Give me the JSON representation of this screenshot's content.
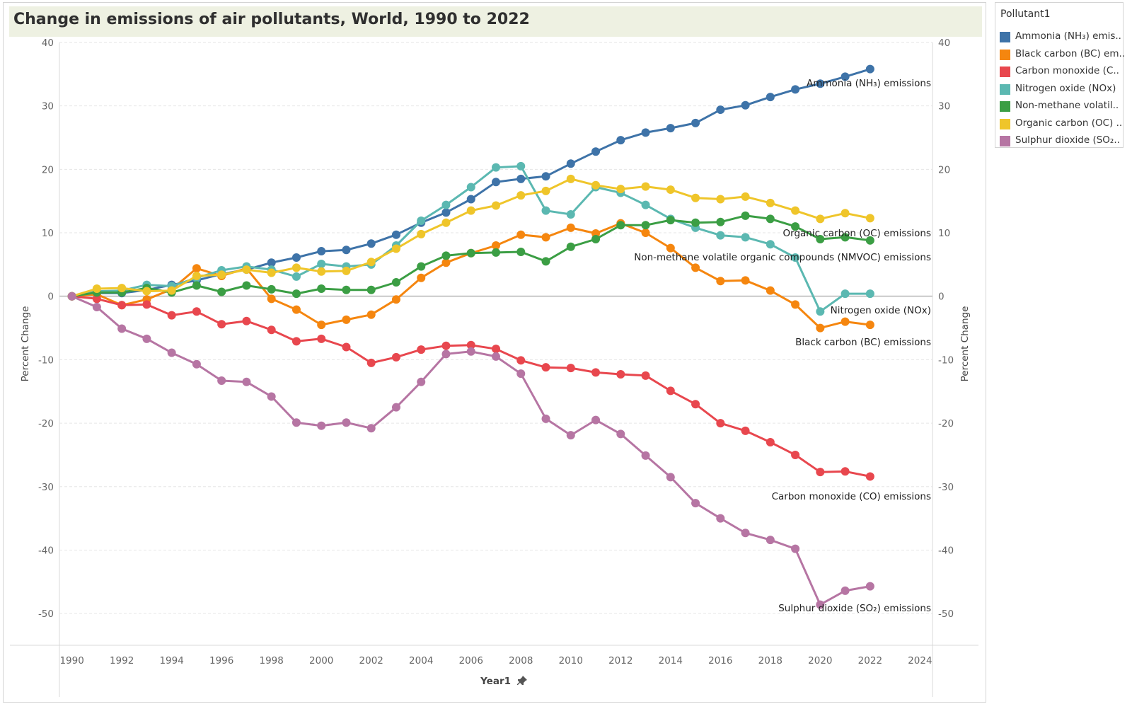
{
  "page": {
    "title": "Change in emissions of air pollutants, World, 1990 to 2022"
  },
  "legend": {
    "title": "Pollutant1",
    "items": [
      {
        "label": "Ammonia (NH₃) emis..",
        "color": "#3e73a8"
      },
      {
        "label": "Black carbon (BC) em..",
        "color": "#f5860f"
      },
      {
        "label": "Carbon monoxide (C..",
        "color": "#e8474e"
      },
      {
        "label": "Nitrogen oxide (NOx)",
        "color": "#5bb8b1"
      },
      {
        "label": "Non-methane volatil..",
        "color": "#3b9e44"
      },
      {
        "label": "Organic carbon (OC) ..",
        "color": "#efc52a"
      },
      {
        "label": "Sulphur dioxide (SO₂..",
        "color": "#b675a3"
      }
    ]
  },
  "x_axis": {
    "title": "Year1",
    "pin_icon": "pin-icon"
  },
  "chart_data": {
    "type": "line",
    "title": "Change in emissions of air pollutants, World, 1990 to 2022",
    "xlabel": "Year1",
    "ylabel": "Percent Change",
    "y2label": "Percent Change",
    "xlim": [
      1989.5,
      2024.5
    ],
    "ylim": [
      -55,
      40
    ],
    "x_ticks": [
      1990,
      1992,
      1994,
      1996,
      1998,
      2000,
      2002,
      2004,
      2006,
      2008,
      2010,
      2012,
      2014,
      2016,
      2018,
      2020,
      2022,
      2024
    ],
    "y_ticks": [
      40,
      30,
      20,
      10,
      0,
      -10,
      -20,
      -30,
      -40,
      -50
    ],
    "grid": true,
    "legend_position": "right",
    "x": [
      1990,
      1991,
      1992,
      1993,
      1994,
      1995,
      1996,
      1997,
      1998,
      1999,
      2000,
      2001,
      2002,
      2003,
      2004,
      2005,
      2006,
      2007,
      2008,
      2009,
      2010,
      2011,
      2012,
      2013,
      2014,
      2015,
      2016,
      2017,
      2018,
      2019,
      2020,
      2021,
      2022
    ],
    "series": [
      {
        "name": "Ammonia (NH₃) emissions",
        "color": "#3e73a8",
        "values": [
          0,
          0.5,
          0.5,
          1.0,
          1.8,
          2.5,
          3.5,
          4.2,
          5.3,
          6.1,
          7.1,
          7.3,
          8.3,
          9.7,
          11.6,
          13.2,
          15.3,
          18.0,
          18.5,
          18.9,
          20.9,
          22.8,
          24.6,
          25.8,
          26.5,
          27.3,
          29.4,
          30.1,
          31.4,
          32.6,
          33.5,
          34.6,
          35.8
        ]
      },
      {
        "name": "Black carbon (BC) emissions",
        "color": "#f5860f",
        "values": [
          0,
          0.3,
          -1.4,
          -0.5,
          1.1,
          4.4,
          3.2,
          4.4,
          -0.4,
          -2.1,
          -4.5,
          -3.7,
          -2.9,
          -0.5,
          2.9,
          5.3,
          6.8,
          8.0,
          9.7,
          9.3,
          10.8,
          9.9,
          11.5,
          10.0,
          7.6,
          4.5,
          2.4,
          2.5,
          0.9,
          -1.3,
          -5.0,
          -4.0,
          -4.5
        ]
      },
      {
        "name": "Carbon monoxide (CO) emissions",
        "color": "#e8474e",
        "values": [
          0,
          -0.4,
          -1.4,
          -1.3,
          -3.0,
          -2.4,
          -4.4,
          -3.9,
          -5.3,
          -7.1,
          -6.7,
          -8.0,
          -10.5,
          -9.6,
          -8.4,
          -7.8,
          -7.7,
          -8.3,
          -10.1,
          -11.2,
          -11.3,
          -12.0,
          -12.3,
          -12.5,
          -14.9,
          -17.0,
          -20.0,
          -21.2,
          -23.0,
          -25.0,
          -27.7,
          -27.6,
          -28.4
        ]
      },
      {
        "name": "Nitrogen oxide (NOx)",
        "color": "#5bb8b1",
        "values": [
          0,
          0.8,
          0.9,
          1.8,
          1.6,
          2.9,
          4.1,
          4.7,
          4.2,
          3.1,
          5.1,
          4.7,
          5.0,
          8.0,
          11.9,
          14.4,
          17.2,
          20.3,
          20.5,
          13.5,
          12.9,
          17.2,
          16.3,
          14.4,
          12.2,
          10.8,
          9.6,
          9.3,
          8.2,
          6.1,
          -2.4,
          0.4,
          0.4
        ]
      },
      {
        "name": "Non-methane volatile organic compounds (NMVOC) emissions",
        "color": "#3b9e44",
        "values": [
          0,
          0.6,
          0.6,
          1.3,
          0.6,
          1.7,
          0.7,
          1.7,
          1.1,
          0.4,
          1.2,
          1.0,
          1.0,
          2.2,
          4.7,
          6.4,
          6.8,
          6.9,
          7.0,
          5.5,
          7.8,
          9.0,
          11.2,
          11.2,
          12.0,
          11.6,
          11.7,
          12.7,
          12.2,
          11.0,
          9.0,
          9.3,
          8.8
        ]
      },
      {
        "name": "Organic carbon (OC) emissions",
        "color": "#efc52a",
        "values": [
          0,
          1.2,
          1.3,
          0.8,
          0.9,
          3.2,
          3.4,
          4.2,
          3.7,
          4.5,
          3.9,
          4.0,
          5.4,
          7.5,
          9.8,
          11.6,
          13.5,
          14.3,
          15.9,
          16.6,
          18.5,
          17.5,
          16.9,
          17.3,
          16.8,
          15.5,
          15.3,
          15.7,
          14.7,
          13.5,
          12.2,
          13.1,
          12.3
        ]
      },
      {
        "name": "Sulphur dioxide (SO₂) emissions",
        "color": "#b675a3",
        "values": [
          0,
          -1.7,
          -5.1,
          -6.7,
          -8.9,
          -10.7,
          -13.3,
          -13.5,
          -15.8,
          -19.9,
          -20.4,
          -19.9,
          -20.8,
          -17.5,
          -13.5,
          -9.1,
          -8.7,
          -9.5,
          -12.2,
          -19.3,
          -21.9,
          -19.5,
          -21.7,
          -25.1,
          -28.5,
          -32.6,
          -35.0,
          -37.3,
          -38.4,
          -39.8,
          -48.6,
          -46.4,
          -45.7
        ]
      }
    ],
    "annotations": [
      {
        "text": "Ammonia (NH₃) emissions",
        "series": 0
      },
      {
        "text": "Organic carbon (OC) emissions",
        "series": 5
      },
      {
        "text": "Non-methane volatile organic compounds (NMVOC) emissions",
        "series": 4
      },
      {
        "text": "Nitrogen oxide (NOx)",
        "series": 3
      },
      {
        "text": "Black carbon (BC) emissions",
        "series": 1
      },
      {
        "text": "Carbon monoxide (CO) emissions",
        "series": 2
      },
      {
        "text": "Sulphur dioxide (SO₂) emissions",
        "series": 6
      }
    ]
  }
}
